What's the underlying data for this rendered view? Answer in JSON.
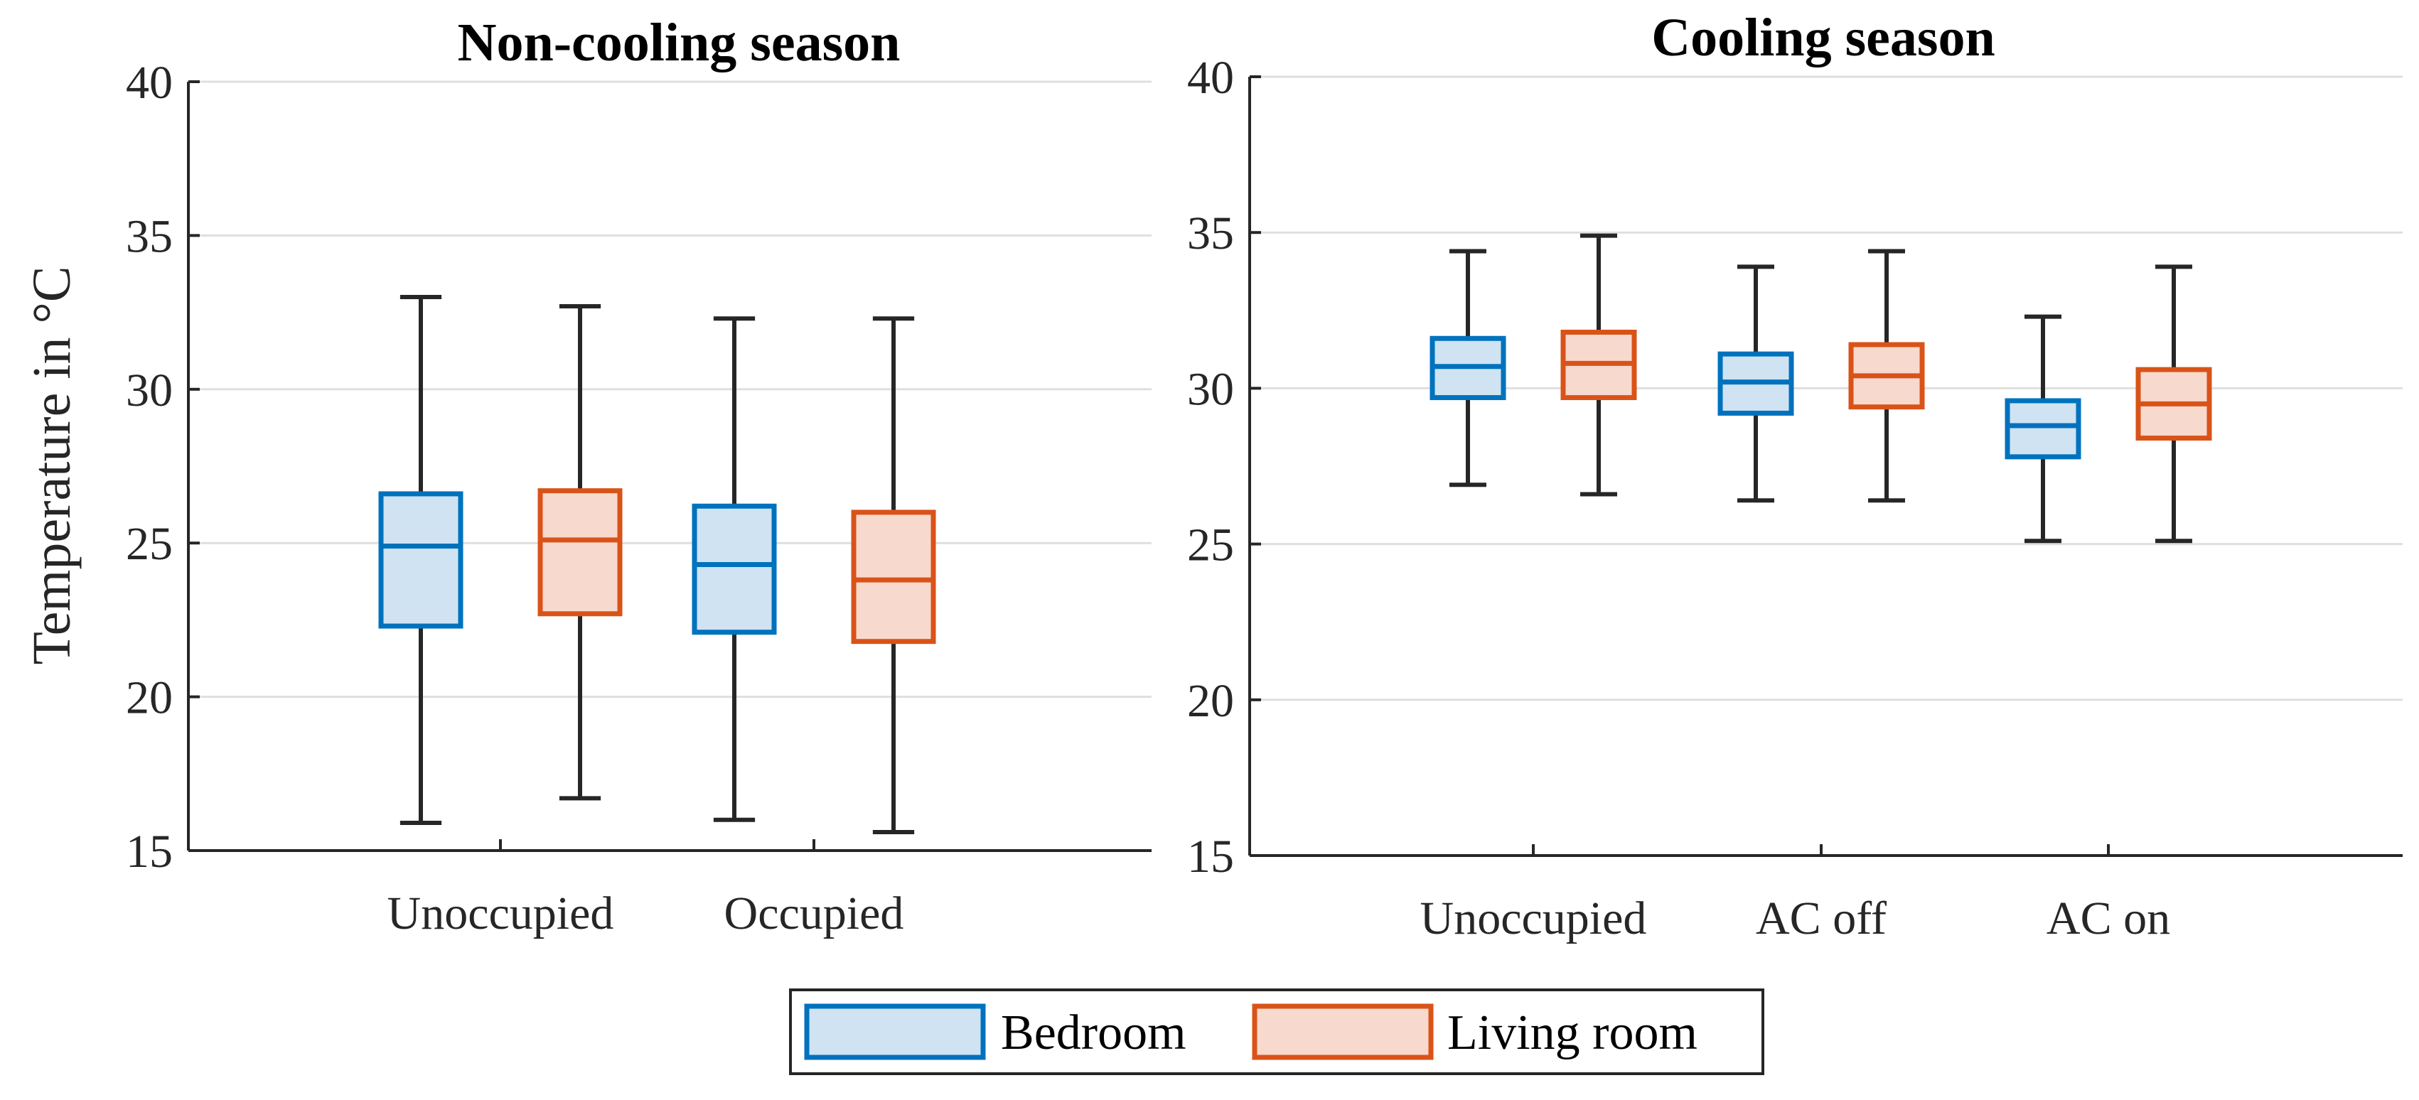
{
  "chart_data": [
    {
      "type": "box",
      "title": "Non-cooling season",
      "ylabel": "Temperature in °C",
      "xlabel": "",
      "ylim": [
        15,
        40
      ],
      "yticks": [
        15,
        20,
        25,
        30,
        35,
        40
      ],
      "grid": true,
      "categories": [
        "Unoccupied",
        "Occupied"
      ],
      "series": [
        {
          "name": "Bedroom",
          "boxes": [
            {
              "category": "Unoccupied",
              "whisker_low": 15.9,
              "q1": 22.3,
              "median": 24.9,
              "q3": 26.6,
              "whisker_high": 33.0
            },
            {
              "category": "Occupied",
              "whisker_low": 16.0,
              "q1": 22.1,
              "median": 24.3,
              "q3": 26.2,
              "whisker_high": 32.3
            }
          ]
        },
        {
          "name": "Living room",
          "boxes": [
            {
              "category": "Unoccupied",
              "whisker_low": 16.7,
              "q1": 22.7,
              "median": 25.1,
              "q3": 26.7,
              "whisker_high": 32.7
            },
            {
              "category": "Occupied",
              "whisker_low": 15.6,
              "q1": 21.8,
              "median": 23.8,
              "q3": 26.0,
              "whisker_high": 32.3
            }
          ]
        }
      ]
    },
    {
      "type": "box",
      "title": "Cooling season",
      "ylabel": "",
      "xlabel": "",
      "ylim": [
        15,
        40
      ],
      "yticks": [
        15,
        20,
        25,
        30,
        35,
        40
      ],
      "grid": true,
      "categories": [
        "Unoccupied",
        "AC off",
        "AC on"
      ],
      "series": [
        {
          "name": "Bedroom",
          "boxes": [
            {
              "category": "Unoccupied",
              "whisker_low": 26.9,
              "q1": 29.7,
              "median": 30.7,
              "q3": 31.6,
              "whisker_high": 34.4
            },
            {
              "category": "AC off",
              "whisker_low": 26.4,
              "q1": 29.2,
              "median": 30.2,
              "q3": 31.1,
              "whisker_high": 33.9
            },
            {
              "category": "AC on",
              "whisker_low": 25.1,
              "q1": 27.8,
              "median": 28.8,
              "q3": 29.6,
              "whisker_high": 32.3
            }
          ]
        },
        {
          "name": "Living room",
          "boxes": [
            {
              "category": "Unoccupied",
              "whisker_low": 26.6,
              "q1": 29.7,
              "median": 30.8,
              "q3": 31.8,
              "whisker_high": 34.9
            },
            {
              "category": "AC off",
              "whisker_low": 26.4,
              "q1": 29.4,
              "median": 30.4,
              "q3": 31.4,
              "whisker_high": 34.4
            },
            {
              "category": "AC on",
              "whisker_low": 25.1,
              "q1": 28.4,
              "median": 29.5,
              "q3": 30.6,
              "whisker_high": 33.9
            }
          ]
        }
      ]
    }
  ],
  "legend": {
    "items": [
      {
        "label": "Bedroom",
        "color": "#0072BD",
        "fill": "#CFE3F2"
      },
      {
        "label": "Living room",
        "color": "#D95319",
        "fill": "#F7DACD"
      }
    ]
  },
  "colors": {
    "axis": "#262626",
    "grid": "#DFDFDF",
    "whisker": "#262626"
  }
}
